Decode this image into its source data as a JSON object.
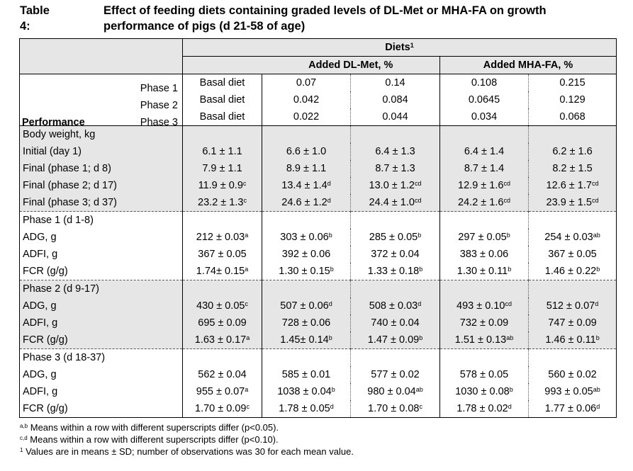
{
  "title": {
    "label": "Table 4:",
    "text": "Effect of feeding diets containing graded levels of DL-Met or MHA-FA on growth performance of pigs (d 21-58 of age)"
  },
  "header": {
    "diets": "Diets",
    "diets_sup": "1",
    "dlmet": "Added DL-Met, %",
    "mhafa": "Added MHA-FA, %",
    "performance": "Performance",
    "phases": [
      {
        "label": "Phase 1",
        "cells": [
          "Basal diet",
          "0.07",
          "0.14",
          "0.108",
          "0.215"
        ]
      },
      {
        "label": "Phase 2",
        "cells": [
          "Basal diet",
          "0.042",
          "0.084",
          "0.0645",
          "0.129"
        ]
      },
      {
        "label": "Phase 3",
        "cells": [
          "Basal diet",
          "0.022",
          "0.044",
          "0.034",
          "0.068"
        ]
      }
    ]
  },
  "sections": [
    {
      "title": "Body weight, kg",
      "shade": true,
      "rows": [
        {
          "label": "Initial (day 1)",
          "cells": [
            [
              "6.1 ± 1.1",
              ""
            ],
            [
              "6.6 ± 1.0",
              ""
            ],
            [
              "6.4 ± 1.3",
              ""
            ],
            [
              "6.4 ± 1.4",
              ""
            ],
            [
              "6.2 ± 1.6",
              ""
            ]
          ]
        },
        {
          "label": "Final (phase 1; d 8)",
          "cells": [
            [
              "7.9 ± 1.1",
              ""
            ],
            [
              "8.9 ± 1.1",
              ""
            ],
            [
              "8.7 ± 1.3",
              ""
            ],
            [
              "8.7 ± 1.4",
              ""
            ],
            [
              "8.2 ± 1.5",
              ""
            ]
          ]
        },
        {
          "label": "Final (phase 2; d 17)",
          "cells": [
            [
              "11.9 ± 0.9",
              "c"
            ],
            [
              "13.4 ± 1.4",
              "d"
            ],
            [
              "13.0 ± 1.2",
              "cd"
            ],
            [
              "12.9 ± 1.6",
              "cd"
            ],
            [
              "12.6 ± 1.7",
              "cd"
            ]
          ]
        },
        {
          "label": "Final (phase 3; d 37)",
          "cells": [
            [
              "23.2 ± 1.3",
              "c"
            ],
            [
              "24.6 ± 1.2",
              "d"
            ],
            [
              "24.4 ± 1.0",
              "cd"
            ],
            [
              "24.2 ± 1.6",
              "cd"
            ],
            [
              "23.9 ± 1.5",
              "cd"
            ]
          ]
        }
      ]
    },
    {
      "title": "Phase 1 (d 1-8)",
      "shade": false,
      "rows": [
        {
          "label": "ADG, g",
          "cells": [
            [
              "212 ± 0.03",
              "a"
            ],
            [
              "303 ± 0.06",
              "b"
            ],
            [
              "285 ± 0.05",
              "b"
            ],
            [
              "297 ± 0.05",
              "b"
            ],
            [
              "254 ± 0.03",
              "ab"
            ]
          ]
        },
        {
          "label": "ADFI, g",
          "cells": [
            [
              "367 ± 0.05",
              ""
            ],
            [
              "392 ± 0.06",
              ""
            ],
            [
              "372 ± 0.04",
              ""
            ],
            [
              "383 ± 0.06",
              ""
            ],
            [
              "367 ± 0.05",
              ""
            ]
          ]
        },
        {
          "label": "FCR (g/g)",
          "cells": [
            [
              "1.74± 0.15",
              "a"
            ],
            [
              "1.30 ± 0.15",
              "b"
            ],
            [
              "1.33 ± 0.18",
              "b"
            ],
            [
              "1.30 ± 0.11",
              "b"
            ],
            [
              "1.46 ± 0.22",
              "b"
            ]
          ]
        }
      ]
    },
    {
      "title": "Phase 2 (d 9-17)",
      "shade": true,
      "rows": [
        {
          "label": "ADG, g",
          "cells": [
            [
              "430 ± 0.05",
              "c"
            ],
            [
              "507 ± 0.06",
              "d"
            ],
            [
              "508 ± 0.03",
              "d"
            ],
            [
              "493 ± 0.10",
              "cd"
            ],
            [
              "512 ± 0.07",
              "d"
            ]
          ]
        },
        {
          "label": "ADFI, g",
          "cells": [
            [
              "695 ± 0.09",
              ""
            ],
            [
              "728 ± 0.06",
              ""
            ],
            [
              "740 ± 0.04",
              ""
            ],
            [
              "732 ± 0.09",
              ""
            ],
            [
              "747 ± 0.09",
              ""
            ]
          ]
        },
        {
          "label": "FCR (g/g)",
          "cells": [
            [
              "1.63 ± 0.17",
              "a"
            ],
            [
              "1.45± 0.14",
              "b"
            ],
            [
              "1.47 ± 0.09",
              "b"
            ],
            [
              "1.51 ± 0.13",
              "ab"
            ],
            [
              "1.46 ± 0.11",
              "b"
            ]
          ]
        }
      ]
    },
    {
      "title": "Phase 3 (d 18-37)",
      "shade": false,
      "rows": [
        {
          "label": "ADG, g",
          "cells": [
            [
              "562 ± 0.04",
              ""
            ],
            [
              "585 ± 0.01",
              ""
            ],
            [
              "577 ± 0.02",
              ""
            ],
            [
              "578 ± 0.05",
              ""
            ],
            [
              "560 ± 0.02",
              ""
            ]
          ]
        },
        {
          "label": "ADFI, g",
          "cells": [
            [
              "955 ± 0.07",
              "a"
            ],
            [
              "1038 ± 0.04",
              "b"
            ],
            [
              "980 ± 0.04",
              "ab"
            ],
            [
              "1030 ± 0.08",
              "b"
            ],
            [
              "993 ± 0.05",
              "ab"
            ]
          ]
        },
        {
          "label": "FCR (g/g)",
          "cells": [
            [
              "1.70 ± 0.09",
              "c"
            ],
            [
              "1.78 ± 0.05",
              "d"
            ],
            [
              "1.70 ± 0.08",
              "c"
            ],
            [
              "1.78 ± 0.02",
              "d"
            ],
            [
              "1.77 ± 0.06",
              "d"
            ]
          ]
        }
      ]
    }
  ],
  "footnotes": [
    {
      "sup": "a,b",
      "text": "Means within a row with different superscripts differ (p<0.05)."
    },
    {
      "sup": "c,d",
      "text": "Means within a row with different superscripts differ (p<0.10)."
    },
    {
      "sup": "1",
      "text": "Values are in means ± SD; number of observations was 30 for each mean value."
    }
  ]
}
